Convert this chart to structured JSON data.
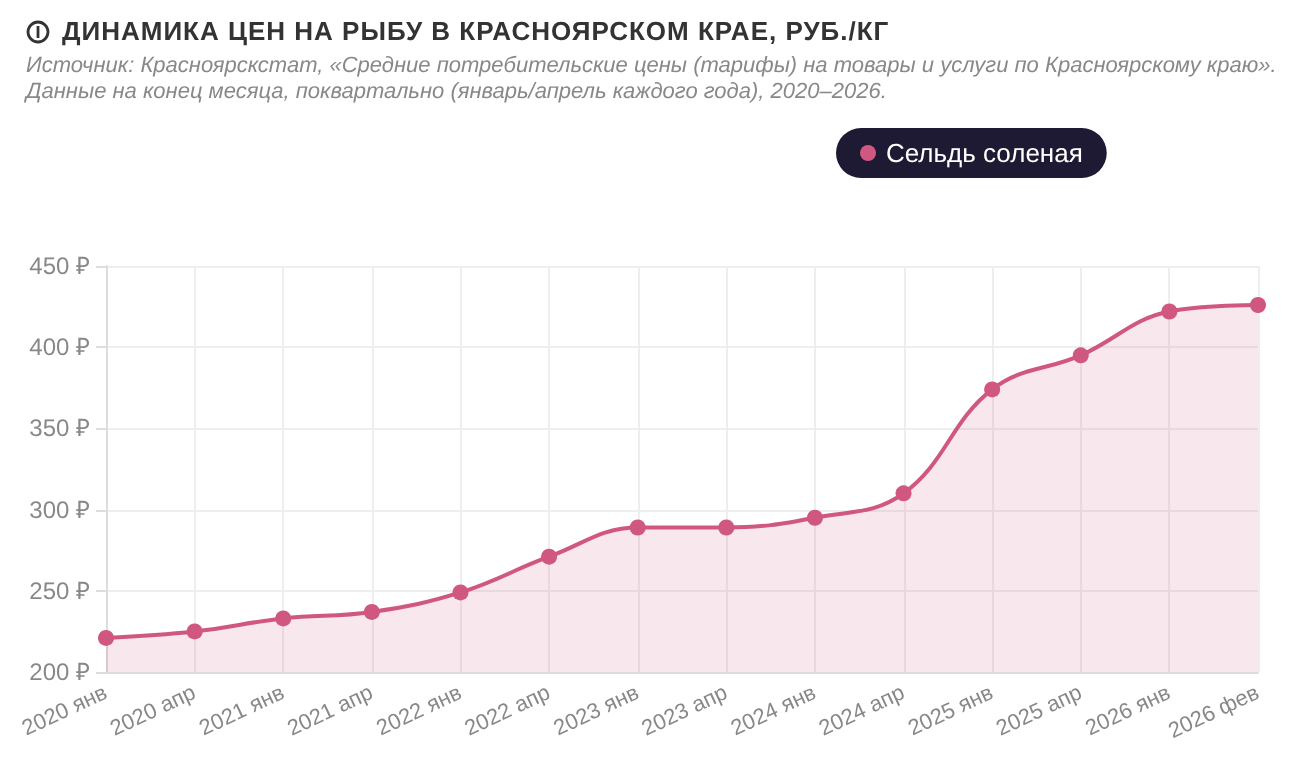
{
  "chart_data": {
    "type": "area",
    "title": "ДИНАМИКА ЦЕН НА РЫБУ В КРАСНОЯРСКОМ КРАЕ, РУБ./КГ",
    "subtitle": "Источник: Красноярскстат, «Средние потребительские цены (тарифы) на товары и услуги по Красноярскому краю». Данные на конец месяца, поквартально (январь/апрель каждого года), 2020–2026.",
    "categories": [
      "2020 янв",
      "2020 апр",
      "2021 янв",
      "2021 апр",
      "2022 янв",
      "2022 апр",
      "2023 янв",
      "2023 апр",
      "2024 янв",
      "2024 апр",
      "2025 янв",
      "2025 апр",
      "2026 янв",
      "2026 фев"
    ],
    "series": [
      {
        "name": "Сельдь соленая",
        "color": "#d0577f",
        "values": [
          221,
          225,
          233,
          237,
          249,
          271,
          289,
          289,
          295,
          310,
          374,
          395,
          422,
          426
        ]
      }
    ],
    "ylim": [
      200,
      450
    ],
    "yticks": [
      {
        "value": 200,
        "label": "200 ₽"
      },
      {
        "value": 250,
        "label": "250 ₽"
      },
      {
        "value": 300,
        "label": "300 ₽"
      },
      {
        "value": 350,
        "label": "350 ₽"
      },
      {
        "value": 400,
        "label": "400 ₽"
      },
      {
        "value": 450,
        "label": "450 ₽"
      }
    ],
    "grid": true,
    "legend": "top",
    "marker": "circle"
  }
}
